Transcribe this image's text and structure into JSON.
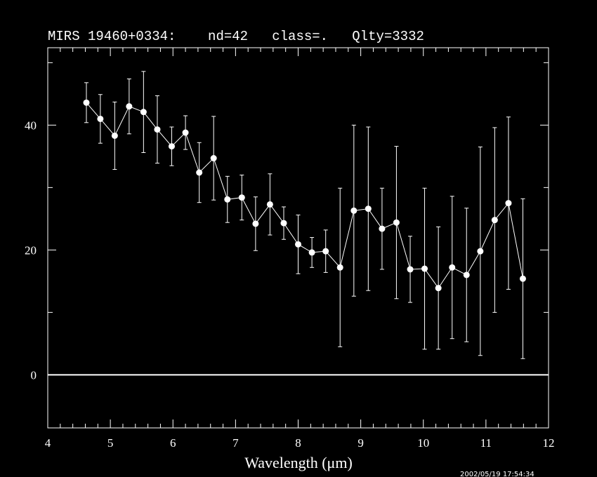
{
  "chart_data": {
    "type": "errorbar",
    "title": "MIRS 19460+0334:    nd=42   class=.   Qlty=3332",
    "x_label": "Wavelength (μm)",
    "timestamp": "2002/05/19 17:54:34",
    "x": [
      4.617,
      4.84,
      5.07,
      5.3,
      5.53,
      5.75,
      5.98,
      6.2,
      6.42,
      6.65,
      6.87,
      7.1,
      7.32,
      7.55,
      7.77,
      8.0,
      8.22,
      8.44,
      8.67,
      8.89,
      9.12,
      9.34,
      9.57,
      9.79,
      10.02,
      10.24,
      10.46,
      10.69,
      10.91,
      11.14,
      11.36,
      11.59
    ],
    "values": [
      43.6,
      41.0,
      38.3,
      43.0,
      42.1,
      39.3,
      36.6,
      38.8,
      32.4,
      34.7,
      28.1,
      28.4,
      24.2,
      27.3,
      24.3,
      20.9,
      19.6,
      19.8,
      17.2,
      26.3,
      26.6,
      23.4,
      24.4,
      16.9,
      17.0,
      13.9,
      17.2,
      16.0,
      19.8,
      24.8,
      27.5,
      15.4
    ],
    "errors": [
      3.2,
      3.9,
      5.4,
      4.4,
      6.5,
      5.4,
      3.1,
      2.7,
      4.8,
      6.7,
      3.7,
      3.6,
      4.3,
      4.9,
      2.6,
      4.7,
      2.4,
      3.4,
      12.7,
      13.7,
      13.1,
      6.5,
      12.2,
      5.3,
      12.9,
      9.8,
      11.4,
      10.7,
      16.7,
      14.8,
      13.8,
      12.8
    ],
    "color": "#ffffff",
    "xlim": [
      4,
      12
    ],
    "ylim": [
      -8.5,
      52.4
    ],
    "xticks": [
      4,
      5,
      6,
      7,
      8,
      9,
      10,
      11,
      12
    ],
    "yticks": [
      0,
      20,
      40
    ],
    "xticks_minor": [
      4.2,
      4.4,
      4.6,
      4.8,
      5.2,
      5.4,
      5.6,
      5.8,
      6.2,
      6.4,
      6.6,
      6.8,
      7.2,
      7.4,
      7.6,
      7.8,
      8.2,
      8.4,
      8.6,
      8.8,
      9.2,
      9.4,
      9.6,
      9.8,
      10.2,
      10.4,
      10.6,
      10.8,
      11.2,
      11.4,
      11.6,
      11.8
    ],
    "yticks_minor": [
      10,
      30,
      50
    ],
    "zero_line": true
  }
}
